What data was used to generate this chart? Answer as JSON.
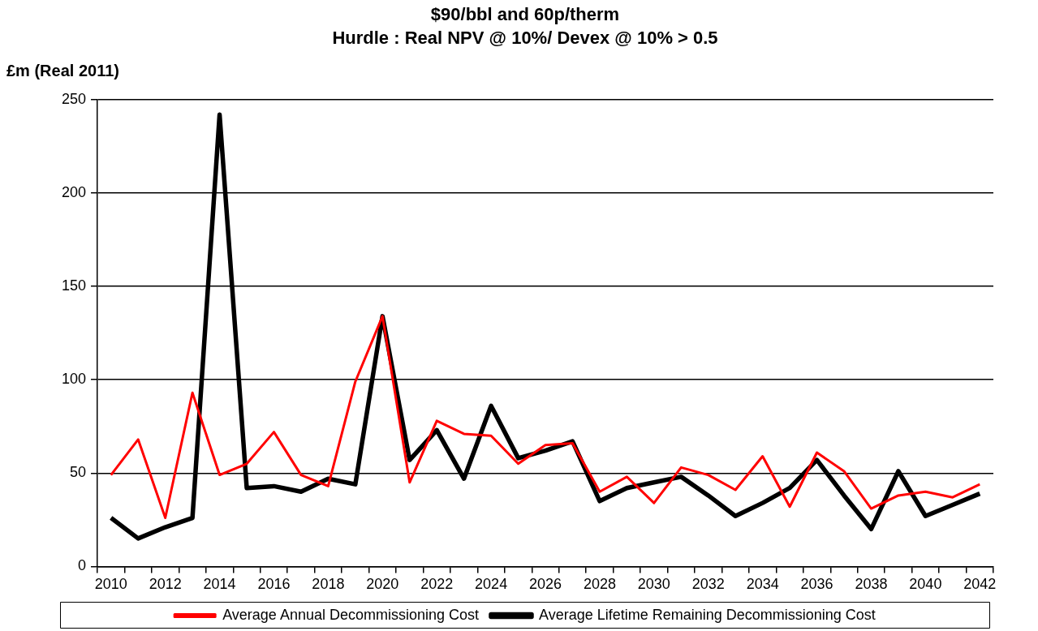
{
  "chart_data": {
    "type": "line",
    "title": "$90/bbl and 60p/therm",
    "subtitle": "Hurdle : Real NPV @ 10%/ Devex @ 10% > 0.5",
    "ylabel": "£m (Real 2011)",
    "categories": [
      "2010",
      null,
      "2012",
      null,
      "2014",
      null,
      "2016",
      null,
      "2018",
      null,
      "2020",
      null,
      "2022",
      null,
      "2024",
      null,
      "2026",
      null,
      "2028",
      null,
      "2030",
      null,
      "2032",
      null,
      "2034",
      null,
      "2036",
      null,
      "2038",
      null,
      "2040",
      null,
      "2042"
    ],
    "series": [
      {
        "name": "Average Annual Decommissioning Cost",
        "color": "#ff0000",
        "values": [
          49,
          68,
          26,
          93,
          49,
          55,
          72,
          49,
          43,
          99,
          134,
          45,
          78,
          71,
          70,
          55,
          65,
          66,
          40,
          48,
          34,
          53,
          49,
          41,
          59,
          32,
          61,
          51,
          31,
          38,
          40,
          37,
          44
        ]
      },
      {
        "name": "Average Lifetime Remaining Decommissioning Cost",
        "color": "#000000",
        "values": [
          26,
          15,
          21,
          26,
          242,
          42,
          43,
          40,
          47,
          44,
          134,
          57,
          73,
          47,
          86,
          58,
          62,
          67,
          35,
          42,
          45,
          48,
          38,
          27,
          34,
          42,
          57,
          38,
          20,
          51,
          27,
          33,
          39
        ]
      }
    ],
    "ylim": [
      0,
      250
    ],
    "yticks": [
      0,
      50,
      100,
      150,
      200,
      250
    ],
    "grid": "y",
    "legend": "bottom",
    "marker": "none",
    "line_style": "solid"
  }
}
